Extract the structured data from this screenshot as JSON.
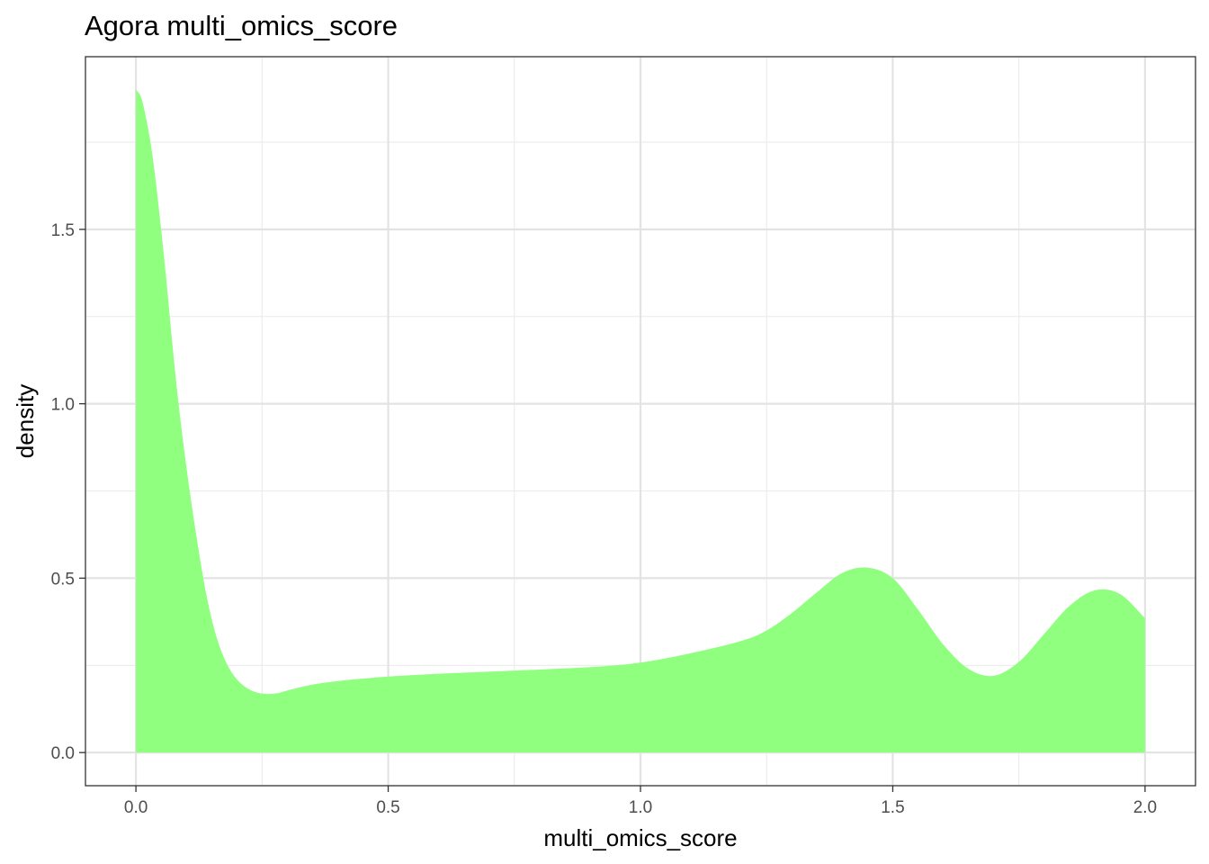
{
  "chart_data": {
    "type": "area",
    "title": "Agora multi_omics_score",
    "xlabel": "multi_omics_score",
    "ylabel": "density",
    "xlim": [
      -0.1,
      2.1
    ],
    "ylim": [
      -0.095,
      1.995
    ],
    "x_ticks": [
      0.0,
      0.5,
      1.0,
      1.5,
      2.0
    ],
    "x_tick_labels": [
      "0.0",
      "0.5",
      "1.0",
      "1.5",
      "2.0"
    ],
    "y_ticks": [
      0.0,
      0.5,
      1.0,
      1.5
    ],
    "y_tick_labels": [
      "0.0",
      "0.5",
      "1.0",
      "1.5"
    ],
    "grid": true,
    "legend": "none",
    "fill_color": "#90ff80",
    "series": [
      {
        "x": [
          0.0,
          0.01,
          0.02,
          0.03,
          0.04,
          0.05,
          0.06,
          0.08,
          0.1,
          0.12,
          0.14,
          0.16,
          0.18,
          0.2,
          0.22,
          0.24,
          0.26,
          0.28,
          0.3,
          0.35,
          0.4,
          0.45,
          0.5,
          0.6,
          0.7,
          0.8,
          0.9,
          1.0,
          1.1,
          1.2,
          1.25,
          1.3,
          1.35,
          1.4,
          1.45,
          1.5,
          1.55,
          1.6,
          1.65,
          1.7,
          1.75,
          1.8,
          1.85,
          1.9,
          1.95,
          2.0
        ],
        "y": [
          1.9,
          1.88,
          1.82,
          1.74,
          1.63,
          1.5,
          1.36,
          1.06,
          0.82,
          0.62,
          0.45,
          0.33,
          0.255,
          0.21,
          0.185,
          0.172,
          0.168,
          0.17,
          0.178,
          0.195,
          0.205,
          0.212,
          0.218,
          0.226,
          0.232,
          0.238,
          0.245,
          0.258,
          0.285,
          0.32,
          0.35,
          0.4,
          0.46,
          0.515,
          0.53,
          0.5,
          0.41,
          0.31,
          0.24,
          0.22,
          0.26,
          0.34,
          0.42,
          0.465,
          0.455,
          0.385
        ]
      }
    ]
  }
}
